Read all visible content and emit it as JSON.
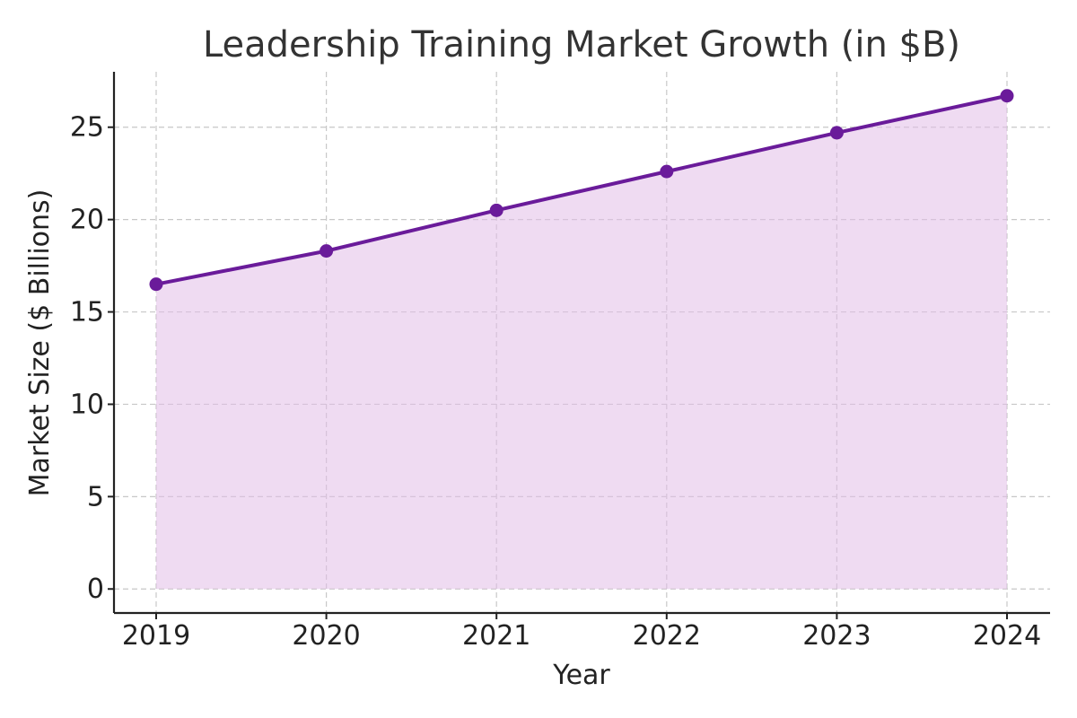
{
  "chart_data": {
    "type": "area",
    "title": "Leadership Training Market Growth (in $B)",
    "xlabel": "Year",
    "ylabel": "Market Size ($ Billions)",
    "categories": [
      "2019",
      "2020",
      "2021",
      "2022",
      "2023",
      "2024"
    ],
    "values": [
      16.5,
      18.3,
      20.5,
      22.6,
      24.7,
      26.7
    ],
    "ylim": [
      -1.3,
      28
    ],
    "yticks": [
      0,
      5,
      10,
      15,
      20,
      25
    ],
    "grid": true,
    "line_color": "#6a1b9a",
    "fill_color": "#e1bee7",
    "marker": "circle"
  }
}
